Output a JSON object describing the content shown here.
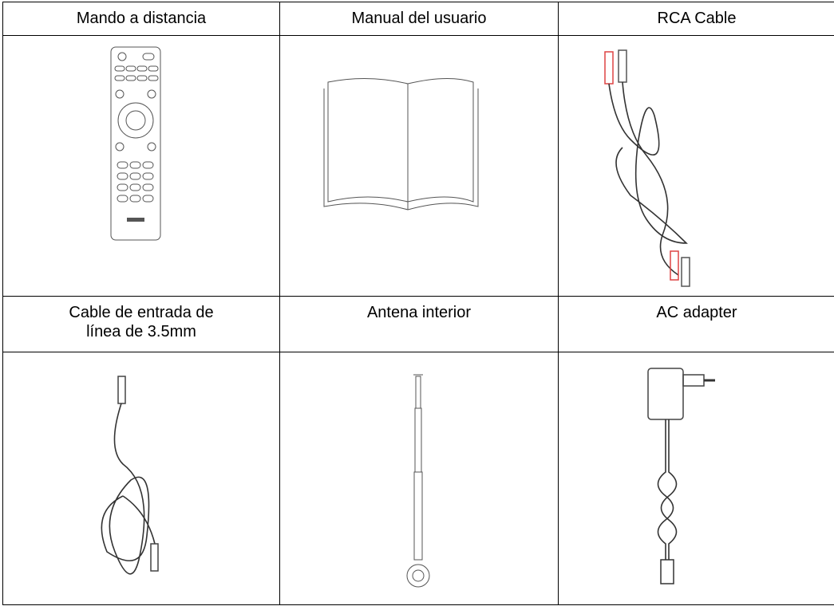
{
  "items": [
    {
      "lines": [
        "Mando a distancia"
      ]
    },
    {
      "lines": [
        "Manual del usuario"
      ]
    },
    {
      "lines": [
        "RCA Cable"
      ]
    },
    {
      "lines": [
        "Cable de entrada de",
        "línea de 3.5mm"
      ]
    },
    {
      "lines": [
        "Antena interior"
      ]
    },
    {
      "lines": [
        "AC adapter"
      ]
    }
  ]
}
